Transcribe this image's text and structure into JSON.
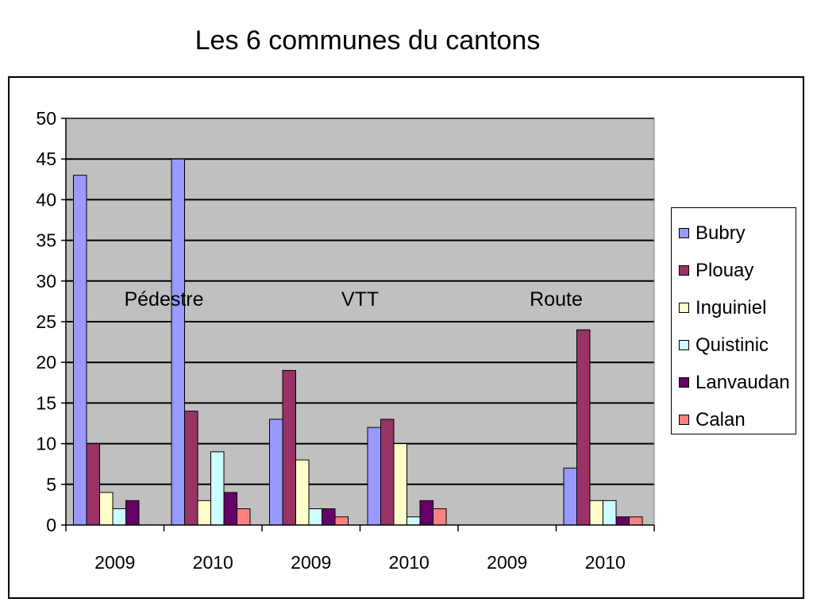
{
  "page": {
    "title": "Les 6 communes du cantons"
  },
  "chart_data": {
    "type": "bar",
    "title": "Les 6 communes du cantons",
    "xlabel": "",
    "ylabel": "",
    "ylim": [
      0,
      50
    ],
    "yticks": [
      0,
      5,
      10,
      15,
      20,
      25,
      30,
      35,
      40,
      45,
      50
    ],
    "grid": true,
    "legend_position": "right",
    "plot_background": "#c0c0c0",
    "categories": [
      "2009",
      "2010",
      "2009",
      "2010",
      "2009",
      "2010"
    ],
    "groups": [
      {
        "label": "Pédestre",
        "categories": [
          0,
          1
        ]
      },
      {
        "label": "VTT",
        "categories": [
          2,
          3
        ]
      },
      {
        "label": "Route",
        "categories": [
          4,
          5
        ]
      }
    ],
    "series": [
      {
        "name": "Bubry",
        "color": "#9999ff",
        "values": [
          43,
          45,
          13,
          12,
          0,
          7
        ]
      },
      {
        "name": "Plouay",
        "color": "#993366",
        "values": [
          10,
          14,
          19,
          13,
          0,
          24
        ]
      },
      {
        "name": "Inguiniel",
        "color": "#ffffcc",
        "values": [
          4,
          3,
          8,
          10,
          0,
          3
        ]
      },
      {
        "name": "Quistinic",
        "color": "#ccffff",
        "values": [
          2,
          9,
          2,
          1,
          0,
          3
        ]
      },
      {
        "name": "Lanvaudan",
        "color": "#660066",
        "values": [
          3,
          4,
          2,
          3,
          0,
          1
        ]
      },
      {
        "name": "Calan",
        "color": "#ff8080",
        "values": [
          0,
          2,
          1,
          2,
          0,
          1
        ]
      }
    ]
  }
}
